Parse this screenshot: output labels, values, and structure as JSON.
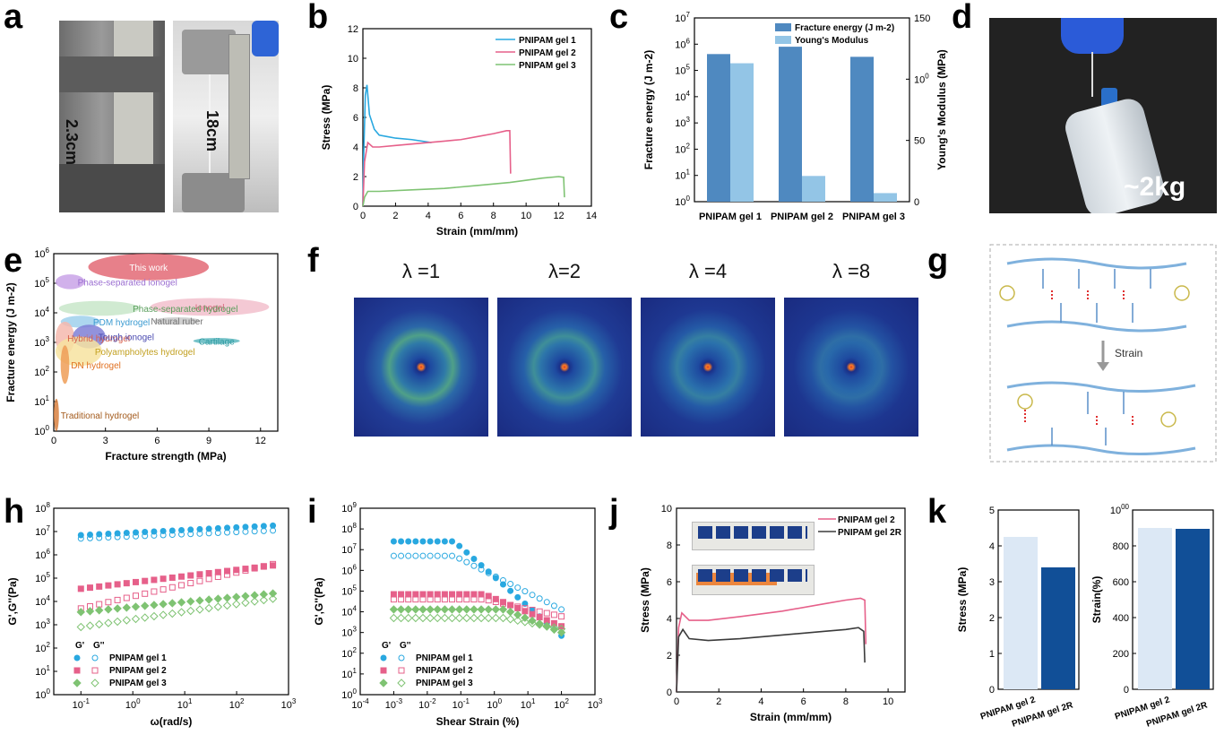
{
  "labels": {
    "a": "a",
    "b": "b",
    "c": "c",
    "d": "d",
    "e": "e",
    "f": "f",
    "g": "g",
    "h": "h",
    "i": "i",
    "j": "j",
    "k": "k"
  },
  "colors": {
    "gel1": "#29a8e0",
    "gel2": "#e6608a",
    "gel3": "#7fc373",
    "gel2R": "#3b3b3b",
    "cDark": "#4f89c0",
    "cLight": "#93c5e6",
    "kLight": "#dce8f5",
    "kDark": "#114f97"
  },
  "panel_a": {
    "photo1_label": "2.3cm",
    "photo2_label": "18cm"
  },
  "panel_d": {
    "photo_label": "~2kg"
  },
  "panel_f": {
    "lambdas": [
      "λ =1",
      "λ=2",
      "λ =4",
      "λ =8"
    ]
  },
  "panel_g": {
    "arrow_label": "Strain"
  },
  "panel_j": {
    "inset": "photos of printed gel logo"
  },
  "chart_data": [
    {
      "panel": "b",
      "type": "line",
      "xlabel": "Strain (mm/mm)",
      "ylabel": "Stress (MPa)",
      "xlim": [
        0,
        14
      ],
      "ylim": [
        0,
        12
      ],
      "xticks": [
        "0",
        "2",
        "4",
        "6",
        "8",
        "10",
        "12",
        "14"
      ],
      "yticks": [
        "0",
        "2",
        "4",
        "6",
        "8",
        "10",
        "12"
      ],
      "legend": "top-right",
      "series": [
        {
          "name": "PNIPAM gel 1",
          "x": [
            0,
            0.05,
            0.15,
            0.25,
            0.4,
            0.7,
            1.0,
            1.5,
            2.0,
            3.0,
            4.2
          ],
          "y": [
            0,
            3.5,
            7.5,
            8.2,
            6.2,
            5.2,
            4.8,
            4.7,
            4.6,
            4.5,
            4.3
          ]
        },
        {
          "name": "PNIPAM gel 2",
          "x": [
            0,
            0.1,
            0.3,
            0.6,
            1.0,
            2.0,
            3.0,
            4.0,
            5.0,
            6.0,
            7.0,
            8.0,
            8.8,
            9.0,
            9.05
          ],
          "y": [
            0,
            3.0,
            4.3,
            4.0,
            4.0,
            4.1,
            4.2,
            4.3,
            4.4,
            4.5,
            4.7,
            4.9,
            5.1,
            5.1,
            2.2
          ]
        },
        {
          "name": "PNIPAM gel 3",
          "x": [
            0,
            0.1,
            0.3,
            1.0,
            3.0,
            5.0,
            7.0,
            9.0,
            11.0,
            12.0,
            12.3,
            12.35
          ],
          "y": [
            0,
            0.6,
            1.0,
            1.0,
            1.1,
            1.2,
            1.4,
            1.6,
            1.9,
            2.0,
            1.95,
            0.6
          ]
        }
      ]
    },
    {
      "panel": "c",
      "type": "bar",
      "categories": [
        "PNIPAM gel 1",
        "PNIPAM gel 2",
        "PNIPAM gel 3"
      ],
      "ylabel": "Fracture energy (J m-2)",
      "ylabel_right": "Young's Modulus (MPa)",
      "ylim_log": [
        1,
        10000000
      ],
      "ylim_right": [
        0,
        150
      ],
      "yticks_left": [
        "100",
        "101",
        "102",
        "103",
        "104",
        "105",
        "106",
        "107"
      ],
      "yticks_right": [
        "0",
        "50",
        "100",
        "150"
      ],
      "legend": "top",
      "series": [
        {
          "name": "Fracture energy (J m-2)",
          "axis": "left",
          "values": [
            420000,
            800000,
            330000
          ]
        },
        {
          "name": "Young's Modulus",
          "axis": "right",
          "values": [
            113,
            21,
            7
          ]
        }
      ]
    },
    {
      "panel": "e",
      "type": "scatter",
      "xlabel": "Fracture strength (MPa)",
      "ylabel": "Fracture energy (J m-2)",
      "xlim": [
        0,
        13
      ],
      "ylim_log": [
        1,
        1000000
      ],
      "xticks": [
        "0",
        "3",
        "6",
        "9",
        "12"
      ],
      "yticks": [
        "100",
        "101",
        "102",
        "103",
        "104",
        "105",
        "106"
      ],
      "regions": [
        {
          "name": "This work",
          "x": [
            2,
            9
          ],
          "y_log": [
            5.1,
            6.0
          ],
          "color": "#e36a75"
        },
        {
          "name": "Phase-separated ionogel",
          "x": [
            0.1,
            1.8
          ],
          "y_log": [
            4.8,
            5.3
          ],
          "color": "#c9a3e8"
        },
        {
          "name": "Ionogel",
          "x": [
            5.6,
            12.5
          ],
          "y_log": [
            3.9,
            4.5
          ],
          "color": "#f2bfcc"
        },
        {
          "name": "Phase-separated hydrogel",
          "x": [
            0.3,
            5.0
          ],
          "y_log": [
            3.9,
            4.4
          ],
          "color": "#c8e6c9"
        },
        {
          "name": "PDM hydrogel",
          "x": [
            0.4,
            2.7
          ],
          "y_log": [
            3.5,
            3.9
          ],
          "color": "#9fd0ec"
        },
        {
          "name": "Natural ruber",
          "x": [
            5.8,
            8.5
          ],
          "y_log": [
            3.6,
            3.85
          ],
          "color": "#c8c8c8"
        },
        {
          "name": "Hybrid hydrogel",
          "x": [
            0.1,
            1.2
          ],
          "y_log": [
            2.6,
            3.7
          ],
          "color": "#f4b9ae"
        },
        {
          "name": "Tough ionogel",
          "x": [
            1.1,
            3.0
          ],
          "y_log": [
            2.8,
            3.6
          ],
          "color": "#7f7fd6"
        },
        {
          "name": "Cartilage",
          "x": [
            8.1,
            10.8
          ],
          "y_log": [
            2.95,
            3.15
          ],
          "color": "#5fb9bf"
        },
        {
          "name": "Polyampholytes hydrogel",
          "x": [
            0.1,
            2.8
          ],
          "y_log": [
            2.2,
            3.2
          ],
          "color": "#f7e3a0"
        },
        {
          "name": "DN hydrogel",
          "x": [
            0.4,
            0.9
          ],
          "y_log": [
            1.6,
            2.9
          ],
          "color": "#ef9e57"
        },
        {
          "name": "Traditional hydrogel",
          "x": [
            0.0,
            0.3
          ],
          "y_log": [
            0,
            1.1
          ],
          "color": "#d8803f"
        }
      ]
    },
    {
      "panel": "h",
      "type": "scatter",
      "xlabel": "ω(rad/s)",
      "ylabel": "G',G''(Pa)",
      "xlim_log": [
        0.03,
        1000
      ],
      "ylim_log": [
        1,
        100000000
      ],
      "xticks": [
        "10-1",
        "100",
        "101",
        "102",
        "103"
      ],
      "yticks": [
        "100",
        "101",
        "102",
        "103",
        "104",
        "105",
        "106",
        "107",
        "108"
      ],
      "legend_header": [
        "G'",
        "G''"
      ],
      "series": [
        {
          "name": "PNIPAM gel 1",
          "G1": [
            7000000,
            18000000
          ],
          "G2": [
            5000000,
            11000000
          ]
        },
        {
          "name": "PNIPAM gel 2",
          "G1": [
            35000,
            350000
          ],
          "G2": [
            5000,
            400000
          ]
        },
        {
          "name": "PNIPAM gel 3",
          "G1": [
            3500,
            22000
          ],
          "G2": [
            800,
            13000
          ]
        }
      ],
      "x_range": [
        0.1,
        500
      ]
    },
    {
      "panel": "i",
      "type": "scatter",
      "xlabel": "Shear Strain (%)",
      "ylabel": "G',G''(Pa)",
      "xlim_log": [
        0.0001,
        1000
      ],
      "ylim_log": [
        1,
        1000000000
      ],
      "xticks": [
        "10-4",
        "10-3",
        "10-2",
        "10-1",
        "100",
        "101",
        "102",
        "103"
      ],
      "yticks": [
        "100",
        "101",
        "102",
        "103",
        "104",
        "105",
        "106",
        "107",
        "108",
        "109"
      ],
      "legend_header": [
        "G'",
        "G''"
      ],
      "series": [
        {
          "name": "PNIPAM gel 1",
          "G1": [
            25000000,
            700
          ],
          "G2": [
            5000000,
            13000
          ]
        },
        {
          "name": "PNIPAM gel 2",
          "G1": [
            70000,
            2000
          ],
          "G2": [
            40000,
            6000
          ]
        },
        {
          "name": "PNIPAM gel 3",
          "G1": [
            13000,
            1000
          ],
          "G2": [
            5000,
            1500
          ]
        }
      ],
      "x_range": [
        0.001,
        100
      ]
    },
    {
      "panel": "j",
      "type": "line",
      "xlabel": "Strain (mm/mm)",
      "ylabel": "Stress (MPa)",
      "xlim": [
        0,
        10.8
      ],
      "ylim": [
        0,
        10
      ],
      "xticks": [
        "0",
        "2",
        "4",
        "6",
        "8",
        "10"
      ],
      "yticks": [
        "0",
        "2",
        "4",
        "6",
        "8",
        "10"
      ],
      "legend": "top-right",
      "series": [
        {
          "name": "PNIPAM gel 2",
          "x": [
            0,
            0.1,
            0.25,
            0.6,
            1.5,
            3,
            5,
            7,
            8,
            8.7,
            8.9,
            8.95
          ],
          "y": [
            0,
            3.5,
            4.3,
            3.9,
            3.9,
            4.1,
            4.4,
            4.8,
            5.0,
            5.1,
            5.0,
            2.6
          ]
        },
        {
          "name": "PNIPAM gel 2R",
          "x": [
            0,
            0.1,
            0.3,
            0.6,
            1.5,
            3,
            5,
            7,
            8,
            8.6,
            8.85,
            8.9
          ],
          "y": [
            0,
            3.0,
            3.4,
            2.9,
            2.8,
            2.9,
            3.1,
            3.3,
            3.4,
            3.5,
            3.3,
            1.6
          ]
        }
      ]
    },
    {
      "panel": "k",
      "type": "bar",
      "ylabel": "Stress (MPa)",
      "ylim": [
        0,
        5
      ],
      "yticks": [
        "0",
        "1",
        "2",
        "3",
        "4",
        "5"
      ],
      "categories": [
        "PNIPAM gel 2",
        "PNIPAM gel 2R"
      ],
      "values": [
        4.25,
        3.4
      ]
    },
    {
      "panel": "k",
      "type": "bar",
      "ylabel": "Strain(%)",
      "ylim": [
        0,
        1000
      ],
      "yticks": [
        "0",
        "200",
        "400",
        "600",
        "800",
        "1000"
      ],
      "categories": [
        "PNIPAM gel 2",
        "PNIPAM gel 2R"
      ],
      "values": [
        900,
        895
      ]
    }
  ]
}
